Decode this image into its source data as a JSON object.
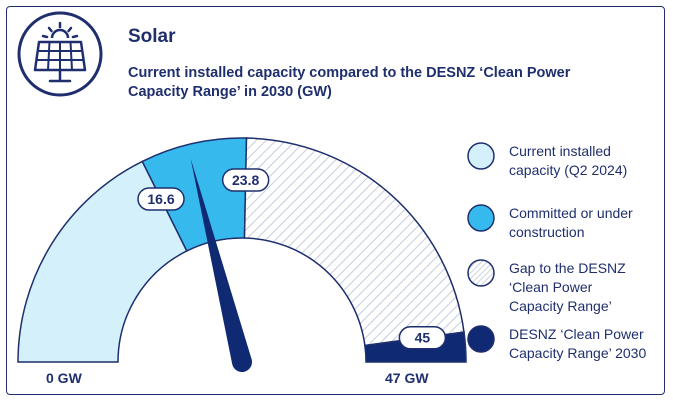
{
  "header": {
    "title": "Solar",
    "subtitle": "Current installed capacity compared to the DESNZ ‘Clean Power Capacity Range’ in 2030 (GW)",
    "icon": "solar-panel-icon"
  },
  "colors": {
    "navy": "#1f2f6e",
    "current": "#d4f0fb",
    "committed": "#36b9ec",
    "dark": "#0f2a72",
    "hatch": "#bfc7d9"
  },
  "chart_data": {
    "type": "gauge",
    "min": 0,
    "max": 47,
    "min_label": "0 GW",
    "max_label": "47 GW",
    "segments": [
      {
        "name": "Current installed capacity (Q2 2024)",
        "from": 0,
        "to": 16.6,
        "style": "light-blue"
      },
      {
        "name": "Committed or under construction",
        "from": 16.6,
        "to": 23.8,
        "style": "blue"
      },
      {
        "name": "Gap to the DESNZ ‘Clean Power Capacity Range’",
        "from": 23.8,
        "to": 45,
        "style": "hatched"
      },
      {
        "name": "DESNZ ‘Clean Power Capacity Range’ 2030",
        "from": 45,
        "to": 47,
        "style": "navy"
      }
    ],
    "value_labels": [
      "16.6",
      "23.8",
      "45"
    ],
    "needle_value": 16.6
  },
  "legend": [
    {
      "label": "Current installed capacity (Q2 2024)"
    },
    {
      "label": "Committed or under construction"
    },
    {
      "label": "Gap to the DESNZ ‘Clean Power Capacity Range’"
    },
    {
      "label": "DESNZ ‘Clean Power Capacity Range’ 2030"
    }
  ]
}
